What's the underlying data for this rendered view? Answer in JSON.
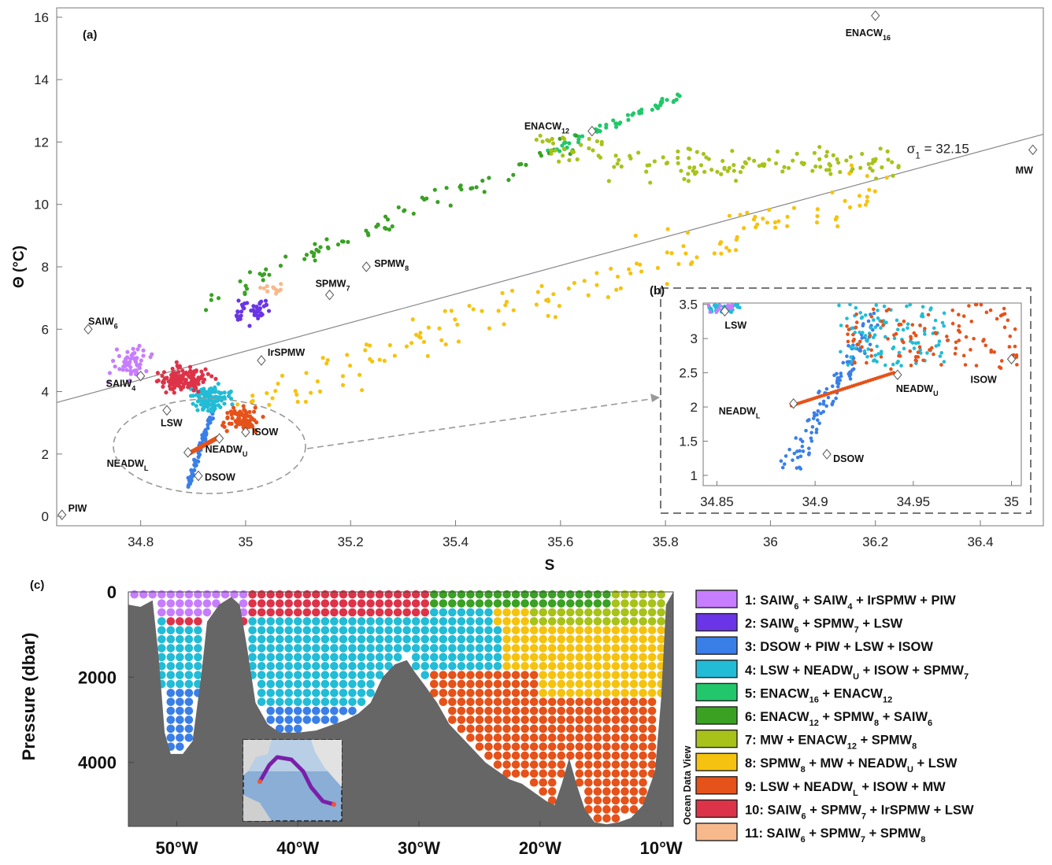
{
  "colors": {
    "c1": "#c77dff",
    "c2": "#6a35e6",
    "c3": "#3a7fe8",
    "c4": "#22bcd6",
    "c5": "#22c76b",
    "c6": "#3aa124",
    "c7": "#a8c21a",
    "c8": "#f5c30f",
    "c9": "#e5521a",
    "c10": "#dd3349",
    "c11": "#f7b98c",
    "land": "#666666"
  },
  "chart_data": [
    {
      "panel": "(a)",
      "type": "scatter",
      "xlabel": "S",
      "ylabel": "Θ (°C)",
      "xlim": [
        34.64,
        36.52
      ],
      "ylim": [
        -0.3,
        16.3
      ],
      "xticks": [
        "34.8",
        "35",
        "35.2",
        "35.4",
        "35.6",
        "35.8",
        "36",
        "36.2",
        "36.4"
      ],
      "yticks": [
        "0",
        "2",
        "4",
        "6",
        "8",
        "10",
        "12",
        "14",
        "16"
      ],
      "isopycnal_label": "σ",
      "isopycnal_sub": "1",
      "isopycnal_value": " = 32.15",
      "isopycnal_line": [
        [
          34.64,
          3.65
        ],
        [
          36.52,
          12.25
        ]
      ],
      "clusters": [
        {
          "id": 1,
          "color": "c1",
          "center": [
            34.78,
            4.9
          ],
          "spread": [
            0.05,
            0.7
          ],
          "n": 55
        },
        {
          "id": 2,
          "color": "c2",
          "center": [
            35.01,
            6.6
          ],
          "spread": [
            0.05,
            0.6
          ],
          "n": 45
        },
        {
          "id": 3,
          "color": "c3",
          "center": [
            34.91,
            2.4
          ],
          "spread": [
            0.03,
            0.8
          ],
          "n": 70
        },
        {
          "id": 4,
          "color": "c4",
          "center": [
            34.93,
            3.8
          ],
          "spread": [
            0.05,
            0.6
          ],
          "n": 110
        },
        {
          "id": 5,
          "color": "c5",
          "center": [
            35.72,
            12.7
          ],
          "spread": [
            0.1,
            0.6
          ],
          "n": 55
        },
        {
          "id": 6,
          "color": "c6",
          "center": [
            35.1,
            8.3
          ],
          "spread": [
            0.25,
            1.6
          ],
          "n": 80
        },
        {
          "id": 7,
          "color": "c7",
          "center": [
            35.9,
            11.3
          ],
          "spread": [
            0.3,
            0.6
          ],
          "n": 140
        },
        {
          "id": 8,
          "color": "c8",
          "center": [
            35.5,
            7.3
          ],
          "spread": [
            0.35,
            1.7
          ],
          "n": 150
        },
        {
          "id": 9,
          "color": "c9",
          "center": [
            34.99,
            3.1
          ],
          "spread": [
            0.05,
            0.5
          ],
          "n": 90
        },
        {
          "id": 10,
          "color": "c10",
          "center": [
            34.88,
            4.4
          ],
          "spread": [
            0.07,
            0.6
          ],
          "n": 140
        },
        {
          "id": 11,
          "color": "c11",
          "center": [
            35.05,
            7.3
          ],
          "spread": [
            0.04,
            0.3
          ],
          "n": 12
        }
      ],
      "water_masses": [
        {
          "name": "ENACW",
          "sub": "16",
          "s": 36.2,
          "t": 16.05
        },
        {
          "name": "ENACW",
          "sub": "12",
          "s": 35.66,
          "t": 12.35
        },
        {
          "name": "MW",
          "sub": "",
          "s": 36.5,
          "t": 11.75
        },
        {
          "name": "SPMW",
          "sub": "8",
          "s": 35.23,
          "t": 8.0
        },
        {
          "name": "SPMW",
          "sub": "7",
          "s": 35.16,
          "t": 7.1
        },
        {
          "name": "SAIW",
          "sub": "6",
          "s": 34.7,
          "t": 6.0
        },
        {
          "name": "SAIW",
          "sub": "4",
          "s": 34.8,
          "t": 4.5
        },
        {
          "name": "IrSPMW",
          "sub": "",
          "s": 35.03,
          "t": 5.0
        },
        {
          "name": "LSW",
          "sub": "",
          "s": 34.85,
          "t": 3.4
        },
        {
          "name": "ISOW",
          "sub": "",
          "s": 35.0,
          "t": 2.7
        },
        {
          "name": "NEADW",
          "sub": "L",
          "s": 34.89,
          "t": 2.05
        },
        {
          "name": "NEADW",
          "sub": "U",
          "s": 34.95,
          "t": 2.5
        },
        {
          "name": "DSOW",
          "sub": "",
          "s": 34.91,
          "t": 1.3
        },
        {
          "name": "PIW",
          "sub": "",
          "s": 34.65,
          "t": 0.05
        }
      ]
    },
    {
      "panel": "(b)",
      "type": "scatter",
      "xlim": [
        34.843,
        35.005
      ],
      "ylim": [
        0.85,
        3.52
      ],
      "xticks": [
        "34.85",
        "34.9",
        "34.95",
        "35"
      ],
      "yticks": [
        "1",
        "1.5",
        "2",
        "2.5",
        "3",
        "3.5"
      ],
      "water_masses": [
        {
          "name": "LSW",
          "sub": "",
          "s": 34.854,
          "t": 3.4
        },
        {
          "name": "NEADW",
          "sub": "L",
          "s": 34.889,
          "t": 2.05
        },
        {
          "name": "NEADW",
          "sub": "U",
          "s": 34.942,
          "t": 2.47
        },
        {
          "name": "ISOW",
          "sub": "",
          "s": 35.0,
          "t": 2.7
        },
        {
          "name": "DSOW",
          "sub": "",
          "s": 34.906,
          "t": 1.31
        }
      ]
    },
    {
      "panel": "(c)",
      "type": "scatter",
      "ylabel": "Pressure (dbar)",
      "xlim": [
        -54,
        -9
      ],
      "ylim": [
        0,
        5500
      ],
      "xticks": [
        "50°W",
        "40°W",
        "30°W",
        "20°W",
        "10°W"
      ],
      "yticks": [
        "0",
        "2000",
        "4000"
      ],
      "watermark": "Ocean Data View",
      "legend": [
        {
          "id": "1: ",
          "color": "c1",
          "items": [
            [
              "SAIW",
              "6"
            ],
            [
              "SAIW",
              "4"
            ],
            [
              "IrSPMW",
              ""
            ],
            [
              "PIW",
              ""
            ]
          ]
        },
        {
          "id": "2: ",
          "color": "c2",
          "items": [
            [
              "SAIW",
              "6"
            ],
            [
              "SPMW",
              "7"
            ],
            [
              "LSW",
              ""
            ]
          ]
        },
        {
          "id": "3: ",
          "color": "c3",
          "items": [
            [
              "DSOW",
              ""
            ],
            [
              "PIW",
              ""
            ],
            [
              "LSW",
              ""
            ],
            [
              "ISOW",
              ""
            ]
          ]
        },
        {
          "id": "4: ",
          "color": "c4",
          "items": [
            [
              "LSW",
              ""
            ],
            [
              "NEADW",
              "U"
            ],
            [
              "ISOW",
              ""
            ],
            [
              "SPMW",
              "7"
            ]
          ]
        },
        {
          "id": "5: ",
          "color": "c5",
          "items": [
            [
              "ENACW",
              "16"
            ],
            [
              "ENACW",
              "12"
            ]
          ]
        },
        {
          "id": "6: ",
          "color": "c6",
          "items": [
            [
              "ENACW",
              "12"
            ],
            [
              "SPMW",
              "8"
            ],
            [
              "SAIW",
              "6"
            ]
          ]
        },
        {
          "id": "7: ",
          "color": "c7",
          "items": [
            [
              "MW",
              ""
            ],
            [
              "ENACW",
              "12"
            ],
            [
              "SPMW",
              "8"
            ]
          ]
        },
        {
          "id": "8: ",
          "color": "c8",
          "items": [
            [
              "SPMW",
              "8"
            ],
            [
              "MW",
              ""
            ],
            [
              "NEADW",
              "U"
            ],
            [
              "LSW",
              ""
            ]
          ]
        },
        {
          "id": "9: ",
          "color": "c9",
          "items": [
            [
              "LSW",
              ""
            ],
            [
              "NEADW",
              "L"
            ],
            [
              "ISOW",
              ""
            ],
            [
              "MW",
              ""
            ]
          ]
        },
        {
          "id": "10: ",
          "color": "c10",
          "items": [
            [
              "SAIW",
              "6"
            ],
            [
              "SPMW",
              "7"
            ],
            [
              "IrSPMW",
              ""
            ],
            [
              "LSW",
              ""
            ]
          ]
        },
        {
          "id": "11: ",
          "color": "c11",
          "items": [
            [
              "SAIW",
              "6"
            ],
            [
              "SPMW",
              "7"
            ],
            [
              "SPMW",
              "8"
            ]
          ]
        }
      ]
    }
  ]
}
